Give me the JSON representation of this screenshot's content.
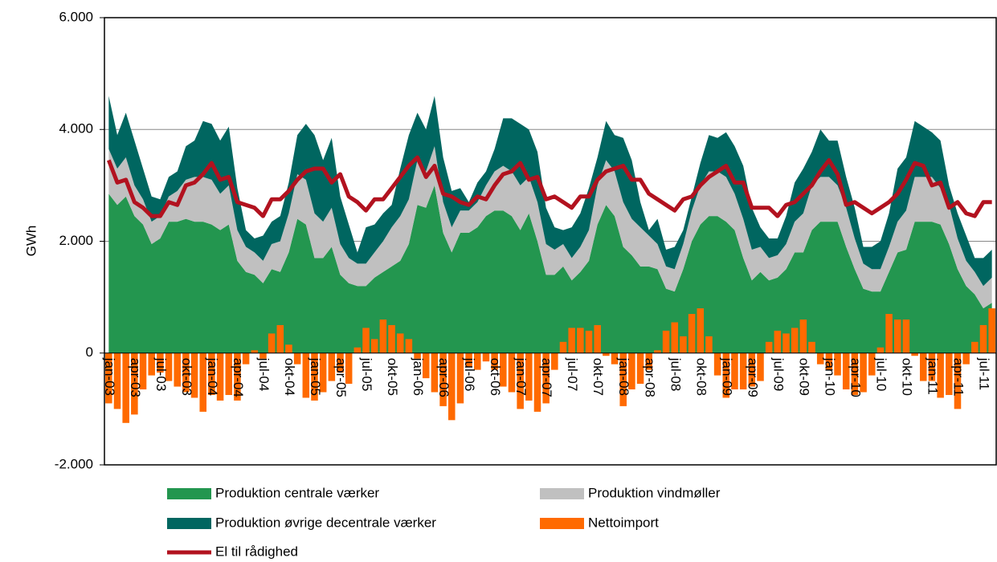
{
  "chart_data": {
    "type": "combo",
    "categories": [
      "jan-03",
      null,
      null,
      "apr-03",
      null,
      null,
      "jul-03",
      null,
      null,
      "okt-03",
      null,
      null,
      "jan-04",
      null,
      null,
      "apr-04",
      null,
      null,
      "jul-04",
      null,
      null,
      "okt-04",
      null,
      null,
      "jan-05",
      null,
      null,
      "apr-05",
      null,
      null,
      "jul-05",
      null,
      null,
      "okt-05",
      null,
      null,
      "jan-06",
      null,
      null,
      "apr-06",
      null,
      null,
      "jul-06",
      null,
      null,
      "okt-06",
      null,
      null,
      "jan-07",
      null,
      null,
      "apr-07",
      null,
      null,
      "jul-07",
      null,
      null,
      "okt-07",
      null,
      null,
      "jan-08",
      null,
      null,
      "apr-08",
      null,
      null,
      "jul-08",
      null,
      null,
      "okt-08",
      null,
      null,
      "jan-09",
      null,
      null,
      "apr-09",
      null,
      null,
      "jul-09",
      null,
      null,
      "okt-09",
      null,
      null,
      "jan-10",
      null,
      null,
      "apr-10",
      null,
      null,
      "jul-10",
      null,
      null,
      "okt-10",
      null,
      null,
      "jan-11",
      null,
      null,
      "apr-11",
      null,
      null,
      "jul-11",
      null
    ],
    "y_label": "GWh",
    "ylim": [
      -2000,
      6000
    ],
    "yticks": [
      {
        "value": -2000,
        "label": "-2.000"
      },
      0,
      {
        "value": 2000,
        "label": "2.000"
      },
      {
        "value": 4000,
        "label": "4.000"
      },
      {
        "value": 6000,
        "label": "6.000"
      }
    ],
    "grid": true,
    "legend": "bottom",
    "series": [
      {
        "name": "Produktion centrale værker",
        "type": "area",
        "stacked": true,
        "color": "#23964f",
        "values": [
          2850,
          2650,
          2800,
          2450,
          2300,
          1950,
          2050,
          2350,
          2350,
          2400,
          2350,
          2350,
          2300,
          2200,
          2300,
          1650,
          1450,
          1400,
          1250,
          1500,
          1450,
          1800,
          2400,
          2300,
          1700,
          1700,
          1900,
          1400,
          1250,
          1200,
          1200,
          1350,
          1450,
          1550,
          1650,
          1950,
          2650,
          2600,
          3000,
          2150,
          1800,
          2150,
          2150,
          2250,
          2450,
          2550,
          2550,
          2450,
          2200,
          2500,
          2000,
          1400,
          1400,
          1550,
          1300,
          1450,
          1650,
          2300,
          2650,
          2450,
          1900,
          1750,
          1550,
          1550,
          1500,
          1150,
          1100,
          1500,
          2000,
          2300,
          2450,
          2450,
          2350,
          2200,
          1700,
          1300,
          1450,
          1300,
          1350,
          1500,
          1800,
          1800,
          2200,
          2350,
          2350,
          2350,
          1900,
          1500,
          1150,
          1100,
          1100,
          1450,
          1800,
          1850,
          2350,
          2350,
          2350,
          2300,
          1950,
          1500,
          1200,
          1050,
          800,
          900
        ]
      },
      {
        "name": "Produktion vindmøller",
        "type": "area",
        "stacked": true,
        "color": "#c0c0c0",
        "values": [
          800,
          650,
          700,
          550,
          450,
          400,
          400,
          450,
          550,
          700,
          800,
          800,
          800,
          650,
          700,
          550,
          450,
          400,
          400,
          450,
          550,
          700,
          800,
          800,
          800,
          650,
          700,
          550,
          450,
          400,
          400,
          450,
          550,
          700,
          800,
          800,
          800,
          650,
          700,
          550,
          450,
          400,
          400,
          450,
          550,
          700,
          800,
          800,
          800,
          650,
          700,
          550,
          450,
          400,
          400,
          450,
          550,
          700,
          800,
          800,
          800,
          650,
          700,
          550,
          450,
          400,
          400,
          450,
          550,
          700,
          800,
          800,
          800,
          650,
          700,
          550,
          450,
          400,
          400,
          450,
          550,
          700,
          800,
          800,
          800,
          650,
          700,
          550,
          450,
          400,
          400,
          450,
          550,
          700,
          800,
          800,
          800,
          650,
          700,
          550,
          450,
          400,
          400,
          450
        ]
      },
      {
        "name": "Produktion øvrige decentrale værker",
        "type": "area",
        "stacked": true,
        "color": "#006660",
        "values": [
          950,
          600,
          800,
          800,
          550,
          450,
          300,
          350,
          350,
          600,
          650,
          1000,
          1000,
          950,
          1050,
          750,
          300,
          250,
          450,
          400,
          450,
          550,
          700,
          1000,
          1400,
          1100,
          1250,
          850,
          600,
          200,
          650,
          500,
          500,
          400,
          850,
          1150,
          850,
          750,
          900,
          800,
          650,
          400,
          150,
          350,
          250,
          400,
          850,
          950,
          1100,
          850,
          900,
          650,
          400,
          250,
          550,
          600,
          750,
          500,
          700,
          650,
          1150,
          1050,
          450,
          100,
          450,
          300,
          400,
          250,
          250,
          400,
          650,
          600,
          800,
          850,
          950,
          750,
          350,
          350,
          300,
          500,
          700,
          800,
          600,
          850,
          650,
          800,
          550,
          550,
          300,
          400,
          500,
          600,
          950,
          950,
          1000,
          900,
          800,
          850,
          350,
          450,
          450,
          250,
          500,
          500
        ]
      },
      {
        "name": "Nettoimport",
        "type": "bar",
        "color": "#ff6a00",
        "values": [
          -900,
          -1000,
          -1250,
          -1100,
          -650,
          -400,
          -350,
          -500,
          -600,
          -700,
          -800,
          -1050,
          -750,
          -850,
          -750,
          -850,
          -200,
          50,
          -100,
          350,
          500,
          150,
          -200,
          -800,
          -850,
          -700,
          -500,
          -350,
          -550,
          100,
          450,
          250,
          600,
          500,
          350,
          250,
          -100,
          -450,
          -700,
          -950,
          -1200,
          -900,
          -250,
          -300,
          -150,
          -300,
          -600,
          -700,
          -1000,
          -850,
          -1050,
          -900,
          -300,
          200,
          450,
          450,
          400,
          500,
          -50,
          -200,
          -950,
          -650,
          -550,
          -300,
          50,
          400,
          550,
          300,
          700,
          800,
          300,
          -400,
          -800,
          -650,
          -650,
          -600,
          -500,
          200,
          400,
          350,
          450,
          600,
          200,
          -200,
          -300,
          -400,
          -650,
          -750,
          -700,
          -400,
          100,
          700,
          600,
          600,
          -50,
          -500,
          -500,
          -800,
          -750,
          -1000,
          -200,
          200,
          500,
          800
        ]
      },
      {
        "name": "El til rådighed",
        "type": "line",
        "color": "#b2121f",
        "values": [
          3450,
          3050,
          3100,
          2700,
          2600,
          2450,
          2450,
          2700,
          2650,
          3000,
          3050,
          3200,
          3400,
          3100,
          3150,
          2700,
          2650,
          2600,
          2450,
          2750,
          2750,
          2900,
          3100,
          3250,
          3300,
          3300,
          3050,
          3200,
          2800,
          2700,
          2550,
          2750,
          2750,
          2950,
          3150,
          3350,
          3500,
          3150,
          3350,
          2850,
          2800,
          2700,
          2650,
          2800,
          2750,
          3000,
          3200,
          3250,
          3400,
          3100,
          3150,
          2750,
          2800,
          2700,
          2600,
          2800,
          2800,
          3100,
          3250,
          3300,
          3350,
          3100,
          3100,
          2850,
          2750,
          2650,
          2550,
          2750,
          2800,
          3000,
          3150,
          3250,
          3350,
          3050,
          3050,
          2600,
          2600,
          2600,
          2450,
          2650,
          2700,
          2850,
          3000,
          3250,
          3450,
          3200,
          2650,
          2700,
          2600,
          2500,
          2600,
          2700,
          2850,
          3100,
          3400,
          3350,
          3000,
          3050,
          2600,
          2700,
          2500,
          2450,
          2700,
          2700
        ]
      }
    ]
  }
}
